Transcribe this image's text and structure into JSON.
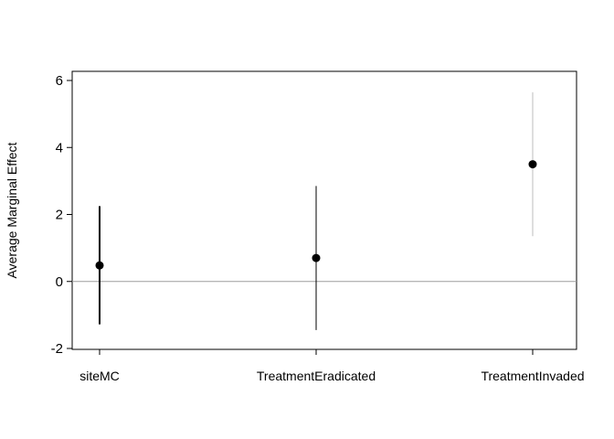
{
  "chart_data": {
    "type": "scatter",
    "title": "",
    "xlabel": "",
    "ylabel": "Average Marginal Effect",
    "categories": [
      "siteMC",
      "TreatmentEradicated",
      "TreatmentInvaded"
    ],
    "series": [
      {
        "estimates": [
          0.48,
          0.7,
          3.5
        ],
        "ci_lower": [
          -1.28,
          -1.45,
          1.35
        ],
        "ci_upper": [
          2.25,
          2.85,
          5.65
        ]
      }
    ],
    "ylim": [
      -2,
      6
    ],
    "yticks": [
      "-2",
      "0",
      "2",
      "4",
      "6"
    ],
    "reference_line": 0,
    "grid": false,
    "legend": "none",
    "colors": {
      "point": "#000000",
      "interval_lines": [
        "#000000",
        "#000000",
        "#bdbdbd"
      ],
      "reference_line": "#9e9e9e",
      "axis": "#000000"
    }
  }
}
